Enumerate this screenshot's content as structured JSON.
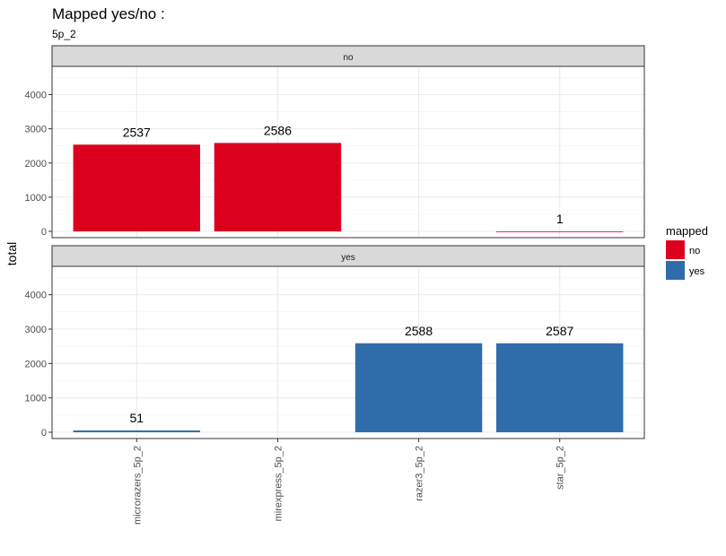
{
  "title": "Mapped yes/no :",
  "subtitle": "5p_2",
  "ylabel": "total",
  "legend": {
    "title": "mapped",
    "items": [
      {
        "label": "no",
        "color": "#DC001E"
      },
      {
        "label": "yes",
        "color": "#2E6DAA"
      }
    ]
  },
  "chart_data": {
    "type": "bar",
    "title": "Mapped yes/no :",
    "subtitle": "5p_2",
    "xlabel": "",
    "ylabel": "total",
    "ylim": [
      0,
      4800
    ],
    "yticks": [
      0,
      1000,
      2000,
      3000,
      4000
    ],
    "grid": true,
    "legend_position": "right",
    "categories": [
      "microrazers_5p_2",
      "mirexpress_5p_2",
      "razer3_5p_2",
      "star_5p_2"
    ],
    "facets": [
      {
        "label": "no",
        "color": "#DC001E",
        "values": [
          2537,
          2586,
          null,
          1
        ],
        "labels": [
          "2537",
          "2586",
          "",
          "1"
        ]
      },
      {
        "label": "yes",
        "color": "#2E6DAA",
        "values": [
          51,
          null,
          2588,
          2587
        ],
        "labels": [
          "51",
          "",
          "2588",
          "2587"
        ]
      }
    ]
  }
}
